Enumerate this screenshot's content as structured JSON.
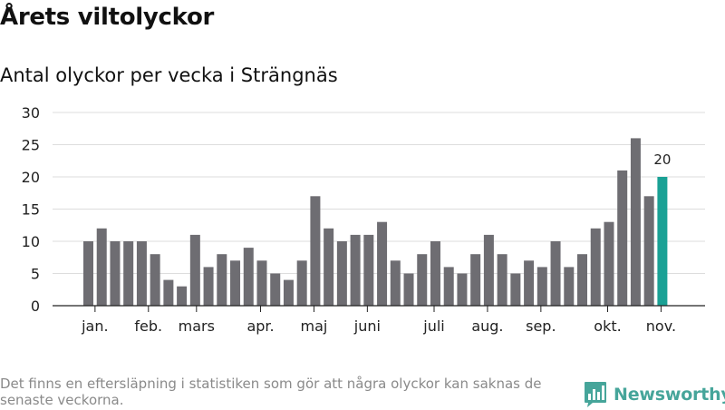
{
  "header": {
    "title": "Årets viltolyckor",
    "subtitle": "Antal olyckor per vecka i Strängnäs"
  },
  "footer": {
    "note": "Det finns en eftersläpning i statistiken som gör att några olyckor kan saknas de senaste veckorna.",
    "brand": "Newsworthy"
  },
  "colors": {
    "bar": "#6e6d72",
    "highlight": "#1aa195",
    "grid": "#dddddd",
    "axis": "#222222",
    "brand": "#46a59a"
  },
  "icons": {
    "brand_logo": "bar-chart-speech-bubble-icon"
  },
  "chart_data": {
    "type": "bar",
    "title": "Antal olyckor per vecka i Strängnäs",
    "xlabel": "",
    "ylabel": "",
    "ylim": [
      0,
      30
    ],
    "yticks": [
      0,
      5,
      10,
      15,
      20,
      25,
      30
    ],
    "grid": true,
    "legend": "none",
    "values": [
      10,
      12,
      10,
      10,
      10,
      8,
      4,
      3,
      11,
      6,
      8,
      7,
      9,
      7,
      5,
      4,
      7,
      17,
      12,
      10,
      11,
      11,
      13,
      7,
      5,
      8,
      10,
      6,
      5,
      8,
      11,
      8,
      5,
      7,
      6,
      10,
      6,
      8,
      12,
      13,
      21,
      26,
      17,
      20
    ],
    "month_labels": [
      {
        "label": "jan.",
        "bar": 0.5
      },
      {
        "label": "feb.",
        "bar": 4.5
      },
      {
        "label": "mars",
        "bar": 8.1
      },
      {
        "label": "apr.",
        "bar": 12.9
      },
      {
        "label": "maj",
        "bar": 16.9
      },
      {
        "label": "juni",
        "bar": 20.9
      },
      {
        "label": "juli",
        "bar": 25.9
      },
      {
        "label": "aug.",
        "bar": 29.9
      },
      {
        "label": "sep.",
        "bar": 33.9
      },
      {
        "label": "okt.",
        "bar": 38.9
      },
      {
        "label": "nov.",
        "bar": 42.9
      }
    ],
    "highlight_index": 43,
    "annotations": [
      {
        "bar": 43,
        "text": "20"
      }
    ]
  }
}
